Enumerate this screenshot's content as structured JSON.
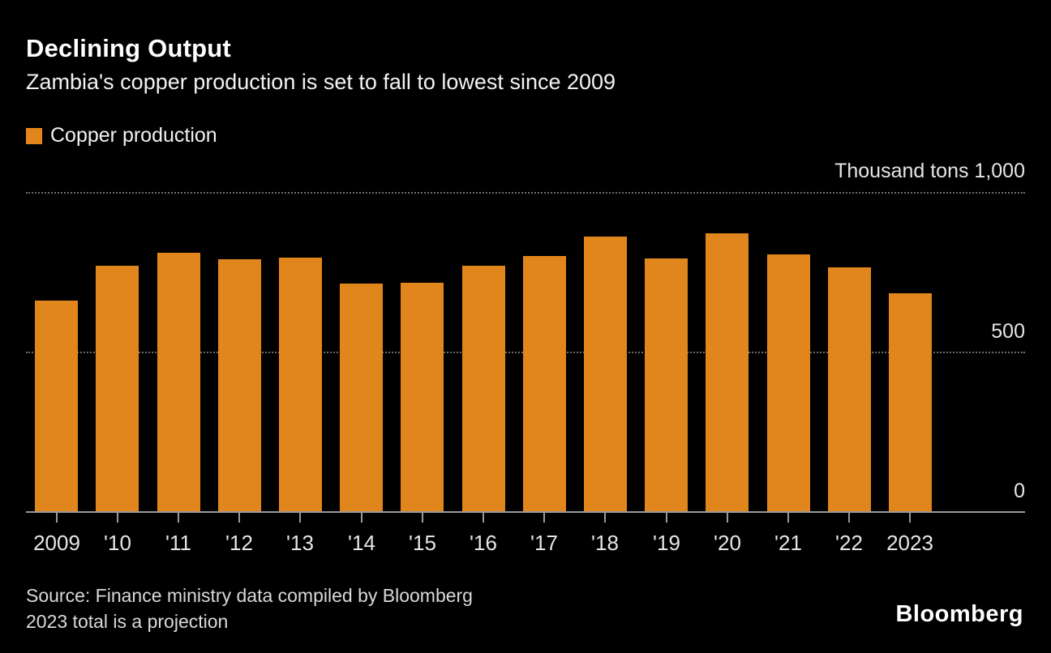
{
  "header": {
    "title": "Declining Output",
    "subtitle": "Zambia's copper production is set to fall to lowest since 2009"
  },
  "legend": {
    "label": "Copper production"
  },
  "axis": {
    "top_label": "Thousand tons 1,000",
    "mid_label": "500",
    "zero_label": "0"
  },
  "footer": {
    "source_line_1": "Source: Finance ministry data compiled by Bloomberg",
    "source_line_2": "2023 total is a projection",
    "brand": "Bloomberg"
  },
  "colors": {
    "bar": "#E1861C",
    "background": "#000000",
    "gridline": "#6e6e6e",
    "baseline": "#9a9a9a",
    "text": "#f2f2f2"
  },
  "chart_data": {
    "type": "bar",
    "title": "Declining Output",
    "subtitle": "Zambia's copper production is set to fall to lowest since 2009",
    "unit_label": "Thousand tons",
    "legend": [
      "Copper production"
    ],
    "legend_position": "top-left",
    "grid": "horizontal-dotted",
    "categories": [
      "2009",
      "'10",
      "'11",
      "'12",
      "'13",
      "'14",
      "'15",
      "'16",
      "'17",
      "'18",
      "'19",
      "'20",
      "'21",
      "'22",
      "2023"
    ],
    "series": [
      {
        "name": "Copper production",
        "values": [
          660,
          770,
          810,
          790,
          795,
          712,
          715,
          770,
          800,
          860,
          793,
          870,
          805,
          765,
          683
        ]
      }
    ],
    "ylim": [
      0,
      1000
    ],
    "yticks": [
      0,
      500,
      1000
    ],
    "ytick_labels": [
      "0",
      "500",
      "1,000"
    ],
    "xlabel": "",
    "ylabel": "Thousand tons"
  }
}
